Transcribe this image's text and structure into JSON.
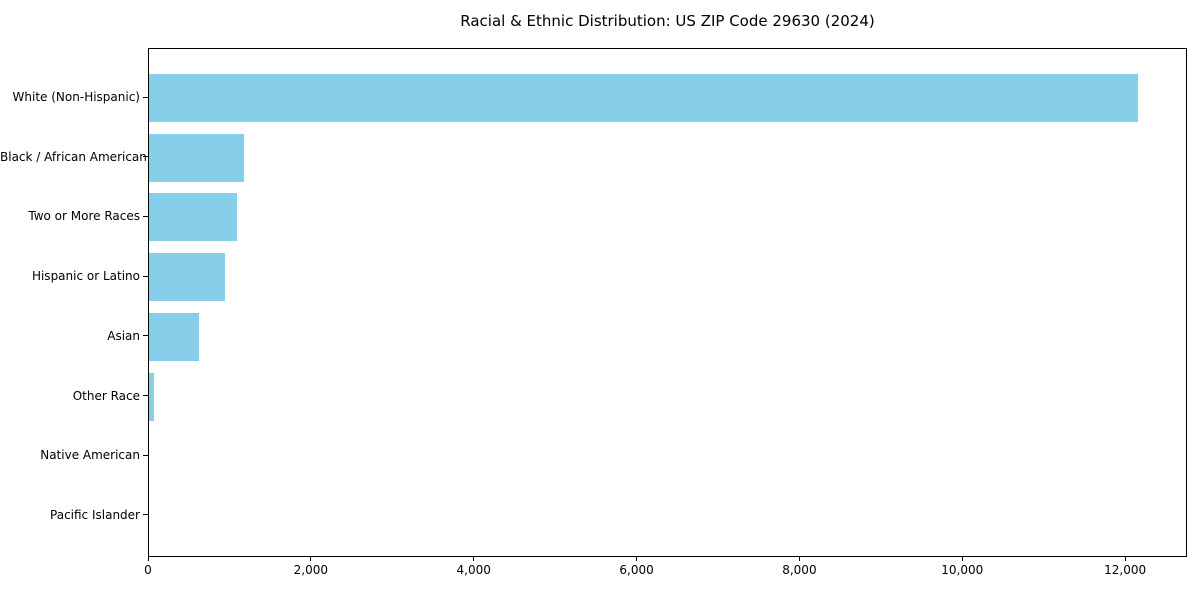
{
  "chart_data": {
    "type": "bar",
    "orientation": "horizontal",
    "title": "Racial & Ethnic Distribution: US ZIP Code 29630 (2024)",
    "categories": [
      "White (Non-Hispanic)",
      "Black / African American",
      "Two or More Races",
      "Hispanic or Latino",
      "Asian",
      "Other Race",
      "Native American",
      "Pacific Islander"
    ],
    "values": [
      12140,
      1170,
      1075,
      930,
      615,
      55,
      0,
      0
    ],
    "xlabel": "",
    "ylabel": "",
    "xlim": [
      0,
      12760
    ],
    "xticks": {
      "values": [
        0,
        2000,
        4000,
        6000,
        8000,
        10000,
        12000
      ],
      "labels": [
        "0",
        "2,000",
        "4,000",
        "6,000",
        "8,000",
        "10,000",
        "12,000"
      ]
    },
    "grid": false,
    "legend": null,
    "bar_color": "#87CEEB",
    "text_color": "#000000",
    "spine_color": "#000000"
  }
}
